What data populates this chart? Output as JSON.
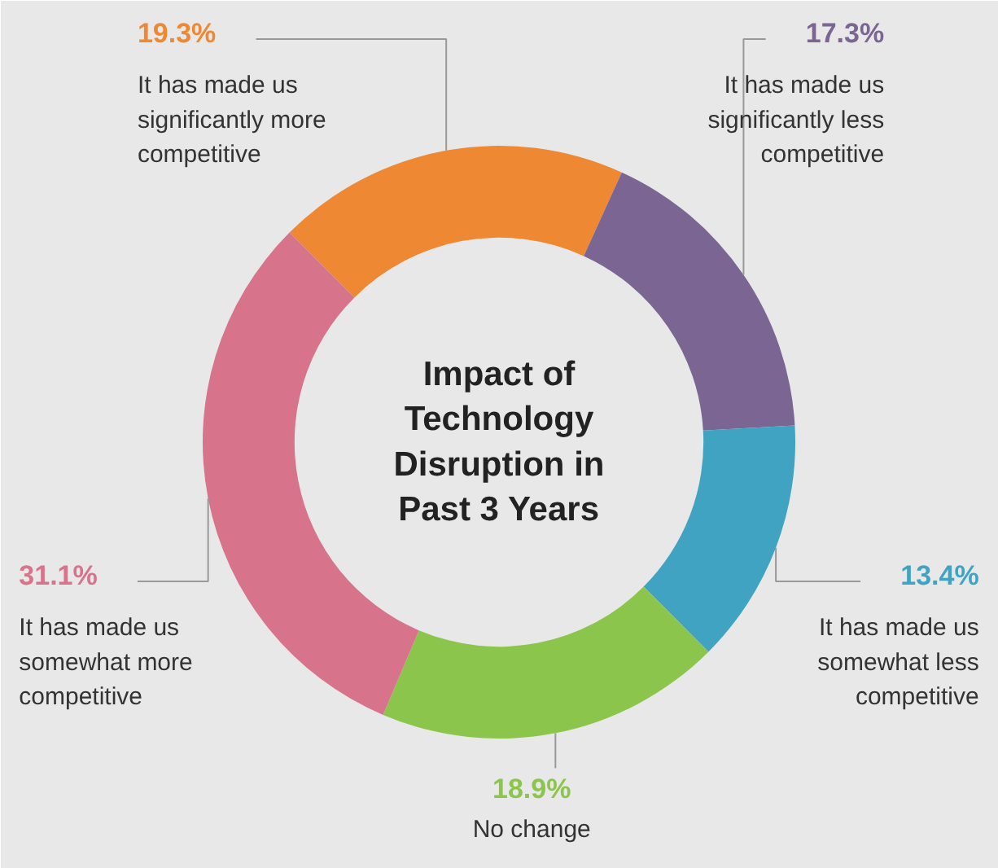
{
  "chart_data": {
    "type": "donut",
    "title": "Impact of Technology Disruption in Past 3 Years",
    "categories": [
      "It has made us significantly more competitive",
      "It has made us significantly less competitive",
      "It has made us somewhat less competitive",
      "No change",
      "It has made us somewhat more competitive"
    ],
    "values": [
      19.3,
      17.3,
      13.4,
      18.9,
      31.1
    ],
    "value_labels": [
      "19.3%",
      "17.3%",
      "13.4%",
      "18.9%",
      "31.1%"
    ],
    "colors": [
      "#ee8833",
      "#7b6592",
      "#40a3c1",
      "#8cc54b",
      "#d7738b"
    ]
  }
}
